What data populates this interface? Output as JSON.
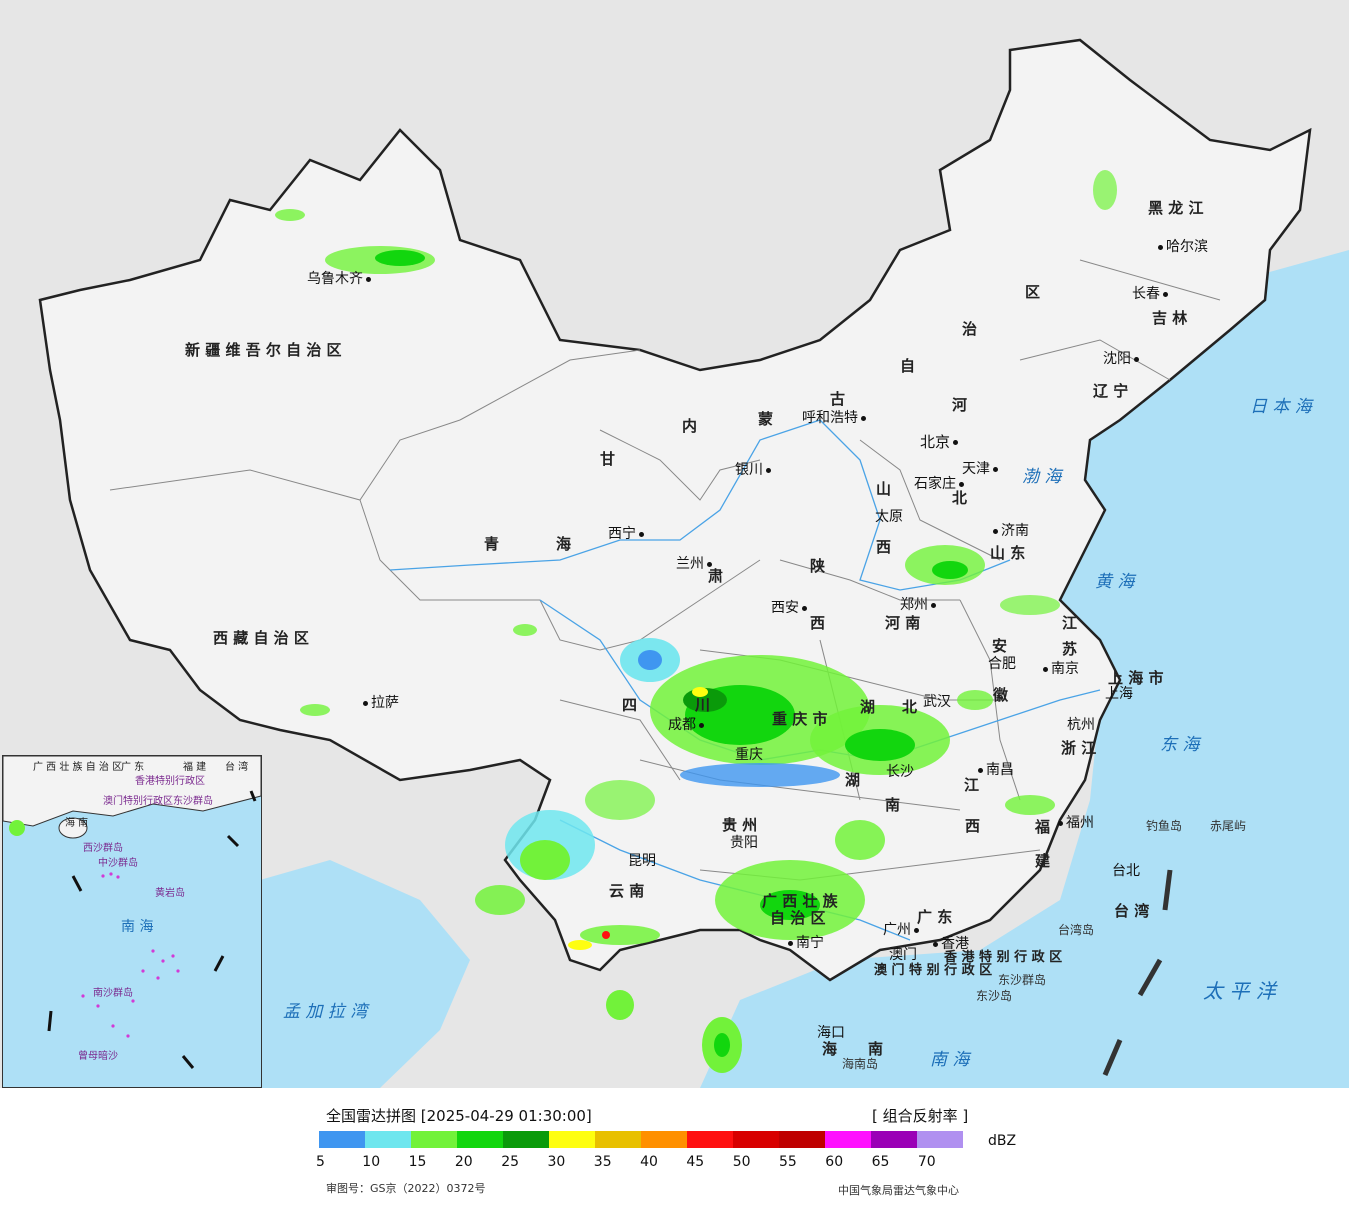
{
  "footer": {
    "title": "全国雷达拼图 [2025-04-29 01:30:00]",
    "product": "[ 组合反射率 ]",
    "unit": "dBZ",
    "permit": "审图号：GS京（2022）0372号",
    "credit": "中国气象局雷达气象中心"
  },
  "legend": {
    "colors": [
      "#3f96f0",
      "#6ee6ee",
      "#72f23a",
      "#12d60e",
      "#0a9a0a",
      "#fefe10",
      "#e8c000",
      "#ff9000",
      "#ff1010",
      "#d80000",
      "#bf0000",
      "#ff10ff",
      "#9a00b6",
      "#b090f0"
    ],
    "ticks": [
      "5",
      "10",
      "15",
      "20",
      "25",
      "30",
      "35",
      "40",
      "45",
      "50",
      "55",
      "60",
      "65",
      "70"
    ]
  },
  "map": {
    "provinces": [
      {
        "name": "黑 龙 江"
      },
      {
        "name": "吉 林"
      },
      {
        "name": "辽 宁"
      },
      {
        "name": "区"
      },
      {
        "name": "治"
      },
      {
        "name": "自"
      },
      {
        "name": "古"
      },
      {
        "name": "内"
      },
      {
        "name": "蒙"
      },
      {
        "name": "新 疆 维 吾 尔 自 治 区"
      },
      {
        "name": "西 藏 自 治 区"
      },
      {
        "name": "青"
      },
      {
        "name": "海"
      },
      {
        "name": "甘"
      },
      {
        "name": "肃"
      },
      {
        "name": "陕"
      },
      {
        "name": "西"
      },
      {
        "name": "山"
      },
      {
        "name": "西"
      },
      {
        "name": "河"
      },
      {
        "name": "北"
      },
      {
        "name": "山 东"
      },
      {
        "name": "河 南"
      },
      {
        "name": "江"
      },
      {
        "name": "苏"
      },
      {
        "name": "安"
      },
      {
        "name": "徽"
      },
      {
        "name": "湖"
      },
      {
        "name": "北"
      },
      {
        "name": "四"
      },
      {
        "name": "川"
      },
      {
        "name": "重 庆 市"
      },
      {
        "name": "贵 州"
      },
      {
        "name": "云 南"
      },
      {
        "name": "湖"
      },
      {
        "name": "南"
      },
      {
        "name": "江"
      },
      {
        "name": "西"
      },
      {
        "name": "浙 江"
      },
      {
        "name": "福"
      },
      {
        "name": "建"
      },
      {
        "name": "广 西 壮 族"
      },
      {
        "name": "自 治 区"
      },
      {
        "name": "广 东"
      },
      {
        "name": "海"
      },
      {
        "name": "南"
      },
      {
        "name": "台 湾"
      },
      {
        "name": "上 海 市"
      },
      {
        "name": "香 港 特 别 行 政 区"
      },
      {
        "name": "澳 门 特 别 行 政 区"
      }
    ],
    "cities": [
      {
        "name": "哈尔滨"
      },
      {
        "name": "长春"
      },
      {
        "name": "沈阳"
      },
      {
        "name": "呼和浩特"
      },
      {
        "name": "北京"
      },
      {
        "name": "天津"
      },
      {
        "name": "石家庄"
      },
      {
        "name": "太原"
      },
      {
        "name": "济南"
      },
      {
        "name": "郑州"
      },
      {
        "name": "银川"
      },
      {
        "name": "西宁"
      },
      {
        "name": "兰州"
      },
      {
        "name": "西安"
      },
      {
        "name": "乌鲁木齐"
      },
      {
        "name": "拉萨"
      },
      {
        "name": "成都"
      },
      {
        "name": "重庆"
      },
      {
        "name": "贵阳"
      },
      {
        "name": "昆明"
      },
      {
        "name": "南宁"
      },
      {
        "name": "广州"
      },
      {
        "name": "澳门"
      },
      {
        "name": "香港"
      },
      {
        "name": "海口"
      },
      {
        "name": "长沙"
      },
      {
        "name": "武汉"
      },
      {
        "name": "南昌"
      },
      {
        "name": "合肥"
      },
      {
        "name": "南京"
      },
      {
        "name": "上海"
      },
      {
        "name": "杭州"
      },
      {
        "name": "福州"
      },
      {
        "name": "台北"
      }
    ],
    "seas": [
      {
        "name": "日 本 海"
      },
      {
        "name": "渤 海"
      },
      {
        "name": "黄 海"
      },
      {
        "name": "东 海"
      },
      {
        "name": "太 平 洋"
      },
      {
        "name": "南 海"
      },
      {
        "name": "孟 加 拉 湾"
      }
    ],
    "islands": [
      {
        "name": "钓鱼岛"
      },
      {
        "name": "赤尾屿"
      },
      {
        "name": "台湾岛"
      },
      {
        "name": "东沙群岛"
      },
      {
        "name": "东沙岛"
      },
      {
        "name": "海南岛"
      }
    ],
    "inset": {
      "labels": [
        {
          "name": "广 西 壮 族 自 治 区"
        },
        {
          "name": "广 东"
        },
        {
          "name": "福 建"
        },
        {
          "name": "台 湾"
        },
        {
          "name": "海 南"
        },
        {
          "name": "香港特别行政区"
        },
        {
          "name": "澳门特别行政区"
        },
        {
          "name": "东沙群岛"
        },
        {
          "name": "西沙群岛"
        },
        {
          "name": "中沙群岛"
        },
        {
          "name": "南 海"
        },
        {
          "name": "黄岩岛"
        },
        {
          "name": "南沙群岛"
        },
        {
          "name": "曾母暗沙"
        }
      ]
    }
  }
}
